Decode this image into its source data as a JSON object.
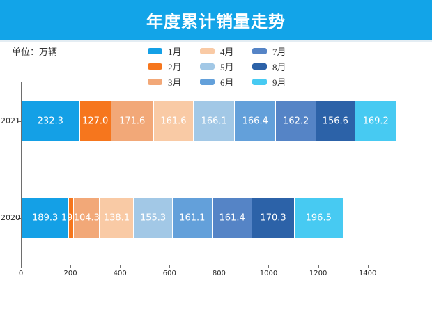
{
  "header": {
    "title": "年度累计销量走势",
    "background": "#12a4e8",
    "stripe_color": "#e4edf3"
  },
  "unit_label": "单位：万辆",
  "chart_data": {
    "type": "bar",
    "orientation": "horizontal-stacked",
    "title": "年度累计销量走势",
    "unit": "万辆",
    "categories": [
      "2021",
      "2020"
    ],
    "series": [
      {
        "name": "1月",
        "color": "#14a0e6",
        "values": [
          232.3,
          189.3
        ]
      },
      {
        "name": "2月",
        "color": "#f6761d",
        "values": [
          127.0,
          19.8
        ]
      },
      {
        "name": "3月",
        "color": "#f2a878",
        "values": [
          171.6,
          104.3
        ]
      },
      {
        "name": "4月",
        "color": "#f9caa5",
        "values": [
          161.6,
          138.1
        ]
      },
      {
        "name": "5月",
        "color": "#a2c8e6",
        "values": [
          166.1,
          155.3
        ]
      },
      {
        "name": "6月",
        "color": "#63a0da",
        "values": [
          166.4,
          161.1
        ]
      },
      {
        "name": "7月",
        "color": "#5584c6",
        "values": [
          162.2,
          161.4
        ]
      },
      {
        "name": "8月",
        "color": "#2c62a8",
        "values": [
          156.6,
          170.3
        ]
      },
      {
        "name": "9月",
        "color": "#47caf2",
        "values": [
          169.2,
          196.5
        ]
      }
    ],
    "totals": {
      "2021": 1513.0,
      "2020": 1296.1
    },
    "x_ticks": [
      0,
      200,
      400,
      600,
      800,
      1000,
      1200,
      1400
    ],
    "xlim": [
      0,
      1595
    ],
    "grid": false,
    "legend_position": "top-center",
    "value_labels": "inside-white"
  }
}
